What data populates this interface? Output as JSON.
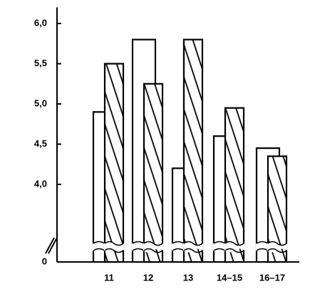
{
  "chart_data": {
    "type": "bar",
    "categories": [
      "11",
      "12",
      "13",
      "14–15",
      "16–17"
    ],
    "series": [
      {
        "color": "#ffffff",
        "pattern": "plain",
        "values": [
          4.9,
          5.8,
          4.2,
          4.6,
          4.45
        ]
      },
      {
        "color": "#ffffff",
        "pattern": "hatched",
        "values": [
          5.5,
          5.25,
          5.8,
          4.95,
          4.35
        ]
      }
    ],
    "ylim": [
      0,
      6.2
    ],
    "yticks": [
      0,
      {
        "value": 4,
        "label": "4,0"
      },
      {
        "value": 4.5,
        "label": "4,5"
      },
      {
        "value": 5,
        "label": "5,0"
      },
      {
        "value": 5.5,
        "label": "5,5"
      },
      {
        "value": 6,
        "label": "6,0"
      }
    ],
    "axis_break": true
  }
}
